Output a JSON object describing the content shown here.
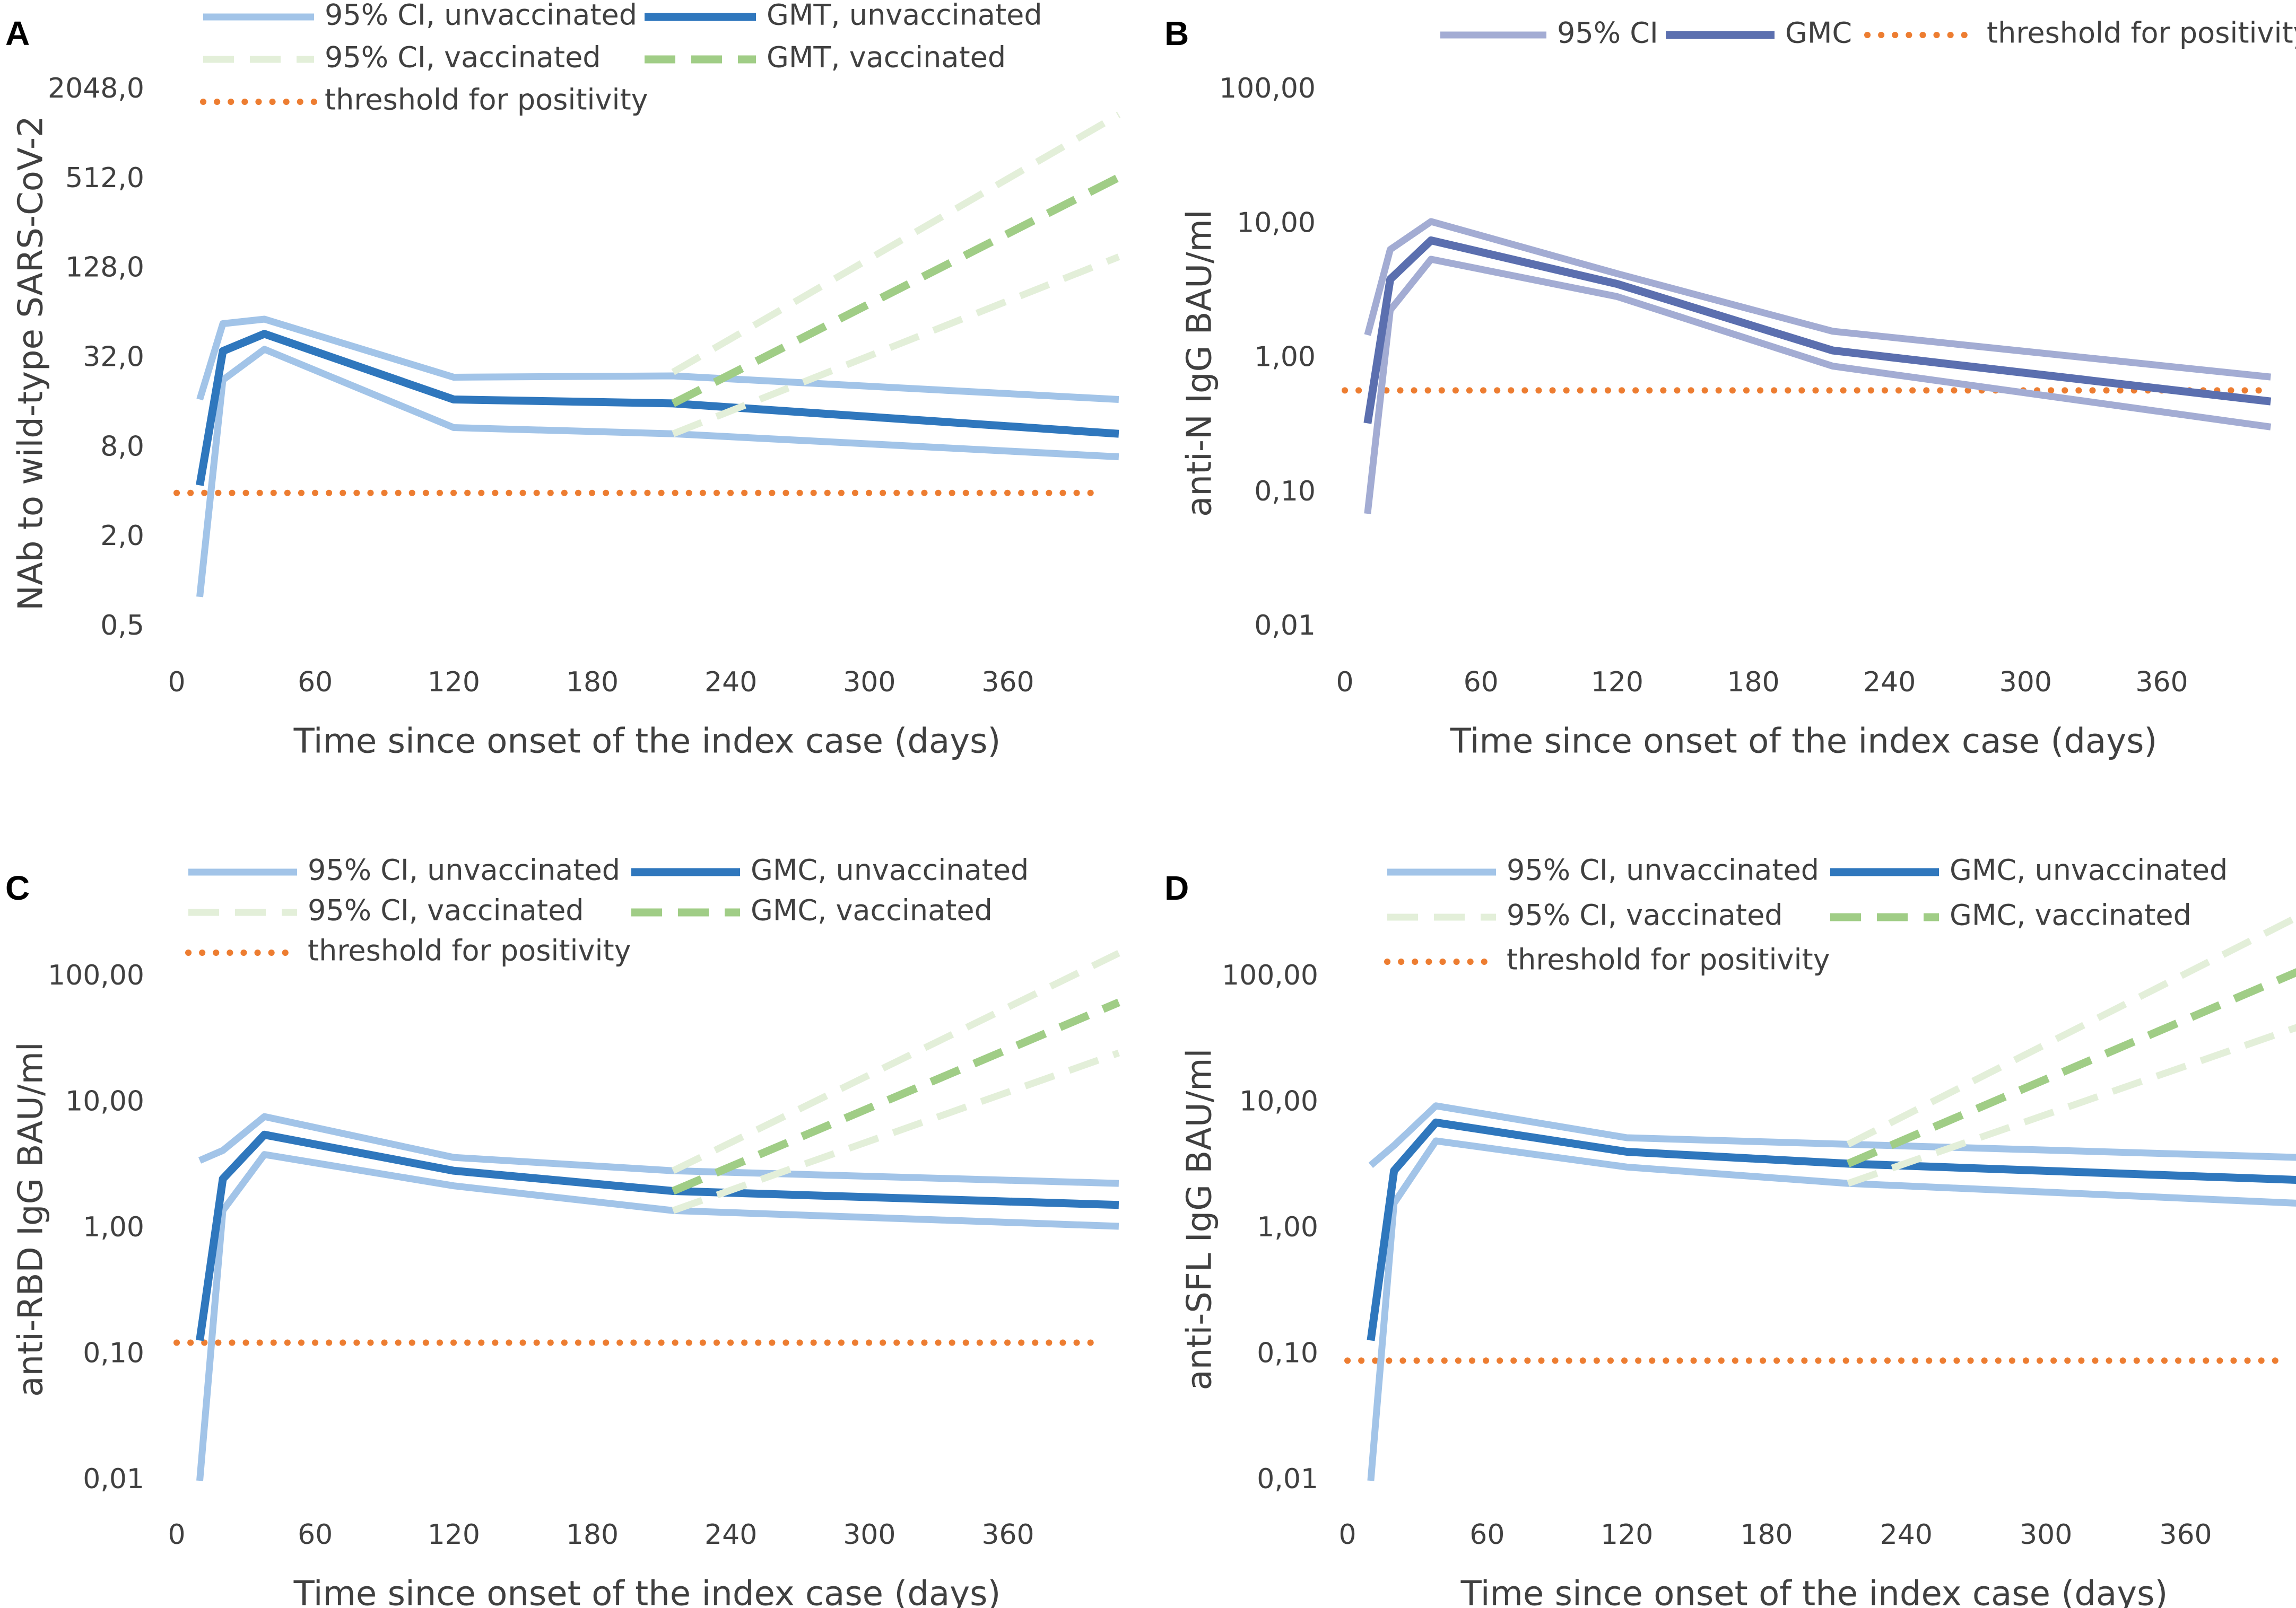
{
  "colors": {
    "ci_unvacc": "#a2c4e8",
    "gm_unvacc": "#2f77bd",
    "ci_vacc": "#e3efd9",
    "gm_vacc": "#a0cd86",
    "ci_n": "#a3acd3",
    "gm_n": "#5b6faf",
    "threshold": "#ed7d31"
  },
  "chart_data": [
    {
      "panel": "A",
      "type": "line",
      "ylabel": "NAb to wild-type SARS-CoV-2",
      "xlabel": "Time since onset of the index case (days)",
      "x_ticks": [
        "0",
        "60",
        "120",
        "180",
        "240",
        "300",
        "360"
      ],
      "y_ticks": [
        "0,5",
        "2,0",
        "8,0",
        "32,0",
        "128,0",
        "512,0",
        "2048,0"
      ],
      "legend": [
        {
          "key": "ci_unvacc",
          "label": "95% CI, unvaccinated"
        },
        {
          "key": "gm_unvacc",
          "label": "GMT, unvaccinated"
        },
        {
          "key": "ci_vacc",
          "label": "95% CI, vaccinated"
        },
        {
          "key": "gm_vacc",
          "label": "GMT, vaccinated"
        },
        {
          "key": "threshold",
          "label": "threshold for positivity"
        }
      ],
      "series": [
        {
          "key": "ci_unvacc",
          "name": "95% CI, unvaccinated (upper)",
          "x": [
            10,
            20,
            38,
            120,
            215,
            408
          ],
          "y": [
            17,
            55,
            59,
            24,
            24.5,
            17
          ]
        },
        {
          "key": "ci_unvacc",
          "name": "95% CI, unvaccinated (lower)",
          "x": [
            10,
            20,
            38,
            120,
            215,
            408
          ],
          "y": [
            0.8,
            23,
            37,
            11,
            10,
            7
          ]
        },
        {
          "key": "gm_unvacc",
          "name": "GMT, unvaccinated",
          "x": [
            10,
            20,
            38,
            120,
            215,
            408
          ],
          "y": [
            4.5,
            36,
            47,
            17,
            16,
            10
          ]
        },
        {
          "key": "ci_vacc",
          "name": "95% CI, vaccinated (upper)",
          "x": [
            215,
            408
          ],
          "y": [
            26,
            1400
          ]
        },
        {
          "key": "ci_vacc",
          "name": "95% CI, vaccinated (lower)",
          "x": [
            215,
            408
          ],
          "y": [
            10,
            155
          ]
        },
        {
          "key": "gm_vacc",
          "name": "GMT, vaccinated",
          "x": [
            215,
            408
          ],
          "y": [
            16,
            530
          ]
        }
      ],
      "threshold": 4
    },
    {
      "panel": "B",
      "type": "line",
      "ylabel": "anti-N IgG BAU/ml",
      "xlabel": "Time since onset of the index case (days)",
      "x_ticks": [
        "0",
        "60",
        "120",
        "180",
        "240",
        "300",
        "360"
      ],
      "y_ticks": [
        "0,01",
        "0,10",
        "1,00",
        "10,00",
        "100,00"
      ],
      "legend": [
        {
          "key": "ci_n",
          "label": "95% CI"
        },
        {
          "key": "gm_n",
          "label": "GMC"
        },
        {
          "key": "threshold",
          "label": "threshold for positivity"
        }
      ],
      "series": [
        {
          "key": "ci_n",
          "name": "95% CI (upper)",
          "x": [
            10,
            20,
            38,
            120,
            215,
            408
          ],
          "y": [
            1.5,
            6.5,
            10.5,
            4.3,
            1.6,
            0.73
          ]
        },
        {
          "key": "ci_n",
          "name": "95% CI (lower)",
          "x": [
            10,
            20,
            38,
            120,
            215,
            408
          ],
          "y": [
            0.07,
            2.3,
            5.5,
            2.9,
            0.88,
            0.31
          ]
        },
        {
          "key": "gm_n",
          "name": "GMC",
          "x": [
            10,
            20,
            38,
            120,
            215,
            408
          ],
          "y": [
            0.33,
            3.9,
            7.6,
            3.6,
            1.15,
            0.48
          ]
        }
      ],
      "threshold": 0.58
    },
    {
      "panel": "C",
      "type": "line",
      "ylabel": "anti-RBD IgG BAU/ml",
      "xlabel": "Time since onset of the index case (days)",
      "x_ticks": [
        "0",
        "60",
        "120",
        "180",
        "240",
        "300",
        "360"
      ],
      "y_ticks": [
        "0,01",
        "0,10",
        "1,00",
        "10,00",
        "100,00"
      ],
      "legend": [
        {
          "key": "ci_unvacc",
          "label": "95% CI, unvaccinated"
        },
        {
          "key": "gm_unvacc",
          "label": "GMC, unvaccinated"
        },
        {
          "key": "ci_vacc",
          "label": "95% CI, vaccinated"
        },
        {
          "key": "gm_vacc",
          "label": "GMC, vaccinated"
        },
        {
          "key": "threshold",
          "label": "threshold for positivity"
        }
      ],
      "series": [
        {
          "key": "ci_unvacc",
          "name": "95% CI, unvaccinated (upper)",
          "x": [
            10,
            20,
            38,
            120,
            215,
            408
          ],
          "y": [
            3.5,
            4.2,
            7.8,
            3.7,
            2.9,
            2.3
          ]
        },
        {
          "key": "ci_unvacc",
          "name": "95% CI, unvaccinated (lower)",
          "x": [
            10,
            20,
            38,
            120,
            215,
            408
          ],
          "y": [
            0.01,
            1.4,
            3.9,
            2.2,
            1.4,
            1.05
          ]
        },
        {
          "key": "gm_unvacc",
          "name": "GMC, unvaccinated",
          "x": [
            10,
            20,
            38,
            120,
            215,
            408
          ],
          "y": [
            0.13,
            2.5,
            5.6,
            2.9,
            2.0,
            1.55
          ]
        },
        {
          "key": "ci_vacc",
          "name": "95% CI, vaccinated (upper)",
          "x": [
            215,
            408
          ],
          "y": [
            2.9,
            155
          ]
        },
        {
          "key": "ci_vacc",
          "name": "95% CI, vaccinated (lower)",
          "x": [
            215,
            408
          ],
          "y": [
            1.4,
            25
          ]
        },
        {
          "key": "gm_vacc",
          "name": "GMC, vaccinated",
          "x": [
            215,
            408
          ],
          "y": [
            2.0,
            63
          ]
        }
      ],
      "threshold": 0.125
    },
    {
      "panel": "D",
      "type": "line",
      "ylabel": "anti-SFL IgG BAU/ml",
      "xlabel": "Time since onset of the index case (days)",
      "x_ticks": [
        "0",
        "60",
        "120",
        "180",
        "240",
        "300",
        "360"
      ],
      "y_ticks": [
        "0,01",
        "0,10",
        "1,00",
        "10,00",
        "100,00"
      ],
      "legend": [
        {
          "key": "ci_unvacc",
          "label": "95% CI, unvaccinated"
        },
        {
          "key": "gm_unvacc",
          "label": "GMC, unvaccinated"
        },
        {
          "key": "ci_vacc",
          "label": "95% CI, vaccinated"
        },
        {
          "key": "gm_vacc",
          "label": "GMC, vaccinated"
        },
        {
          "key": "threshold",
          "label": "threshold for positivity"
        }
      ],
      "series": [
        {
          "key": "ci_unvacc",
          "name": "95% CI, unvaccinated (upper)",
          "x": [
            10,
            20,
            38,
            120,
            215,
            408
          ],
          "y": [
            3.2,
            4.6,
            9.5,
            5.3,
            4.7,
            3.7
          ]
        },
        {
          "key": "ci_unvacc",
          "name": "95% CI, unvaccinated (lower)",
          "x": [
            10,
            20,
            38,
            120,
            215,
            408
          ],
          "y": [
            0.01,
            1.6,
            5.0,
            3.1,
            2.3,
            1.6
          ]
        },
        {
          "key": "gm_unvacc",
          "name": "GMC, unvaccinated",
          "x": [
            10,
            20,
            38,
            120,
            215,
            408
          ],
          "y": [
            0.13,
            2.9,
            7.0,
            4.1,
            3.3,
            2.45
          ]
        },
        {
          "key": "ci_vacc",
          "name": "95% CI, vaccinated (upper)",
          "x": [
            215,
            408
          ],
          "y": [
            4.7,
            300
          ]
        },
        {
          "key": "ci_vacc",
          "name": "95% CI, vaccinated (lower)",
          "x": [
            215,
            408
          ],
          "y": [
            2.3,
            40
          ]
        },
        {
          "key": "gm_vacc",
          "name": "GMC, vaccinated",
          "x": [
            215,
            408
          ],
          "y": [
            3.3,
            110
          ]
        }
      ],
      "threshold": 0.09
    }
  ]
}
